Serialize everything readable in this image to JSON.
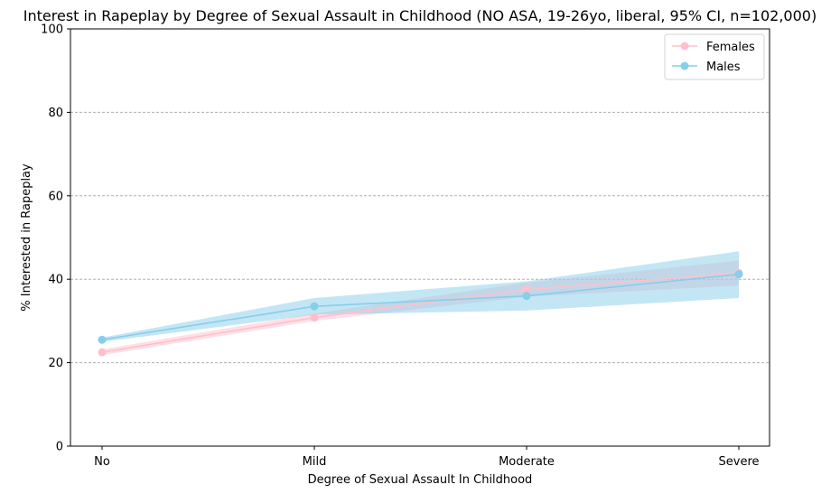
{
  "chart_data": {
    "type": "line",
    "title": "Interest in Rapeplay by Degree of Sexual Assault in Childhood (NO ASA, 19-26yo, liberal, 95% CI, n=102,000)",
    "xlabel": "Degree of Sexual Assault In Childhood",
    "ylabel": "% Interested in Rapeplay",
    "categories": [
      "No",
      "Mild",
      "Moderate",
      "Severe"
    ],
    "ylim": [
      0,
      100
    ],
    "yticks": [
      0,
      20,
      40,
      60,
      80,
      100
    ],
    "grid": "y-dashed",
    "legend_position": "top-right",
    "series": [
      {
        "name": "Females",
        "color": "#ffc0cb",
        "values": [
          22.5,
          30.8,
          37.5,
          41.5
        ],
        "ci_low": [
          21.8,
          30.0,
          35.8,
          38.5
        ],
        "ci_high": [
          23.2,
          31.8,
          39.2,
          44.5
        ]
      },
      {
        "name": "Males",
        "color": "#87ceeb",
        "values": [
          25.5,
          33.5,
          36.0,
          41.2
        ],
        "ci_low": [
          25.0,
          31.5,
          32.5,
          35.5
        ],
        "ci_high": [
          26.0,
          35.5,
          39.5,
          46.7
        ]
      }
    ]
  }
}
